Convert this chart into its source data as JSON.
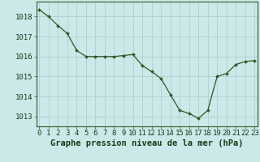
{
  "x": [
    0,
    1,
    2,
    3,
    4,
    5,
    6,
    7,
    8,
    9,
    10,
    11,
    12,
    13,
    14,
    15,
    16,
    17,
    18,
    19,
    20,
    21,
    22,
    23
  ],
  "y": [
    1018.35,
    1018.0,
    1017.55,
    1017.15,
    1016.3,
    1016.0,
    1016.0,
    1016.0,
    1016.0,
    1016.05,
    1016.1,
    1015.55,
    1015.25,
    1014.9,
    1014.1,
    1013.3,
    1013.15,
    1012.9,
    1013.3,
    1015.0,
    1015.15,
    1015.6,
    1015.75,
    1015.8
  ],
  "line_color": "#2d5a27",
  "marker": "D",
  "marker_size": 2.0,
  "bg_color": "#cce8e8",
  "grid_color": "#aacccc",
  "xlabel": "Graphe pression niveau de la mer (hPa)",
  "xlabel_fontsize": 7.5,
  "tick_fontsize": 6.5,
  "ylim": [
    1012.5,
    1018.75
  ],
  "yticks": [
    1013,
    1014,
    1015,
    1016,
    1017,
    1018
  ],
  "xticks": [
    0,
    1,
    2,
    3,
    4,
    5,
    6,
    7,
    8,
    9,
    10,
    11,
    12,
    13,
    14,
    15,
    16,
    17,
    18,
    19,
    20,
    21,
    22,
    23
  ],
  "xlim": [
    -0.3,
    23.3
  ]
}
